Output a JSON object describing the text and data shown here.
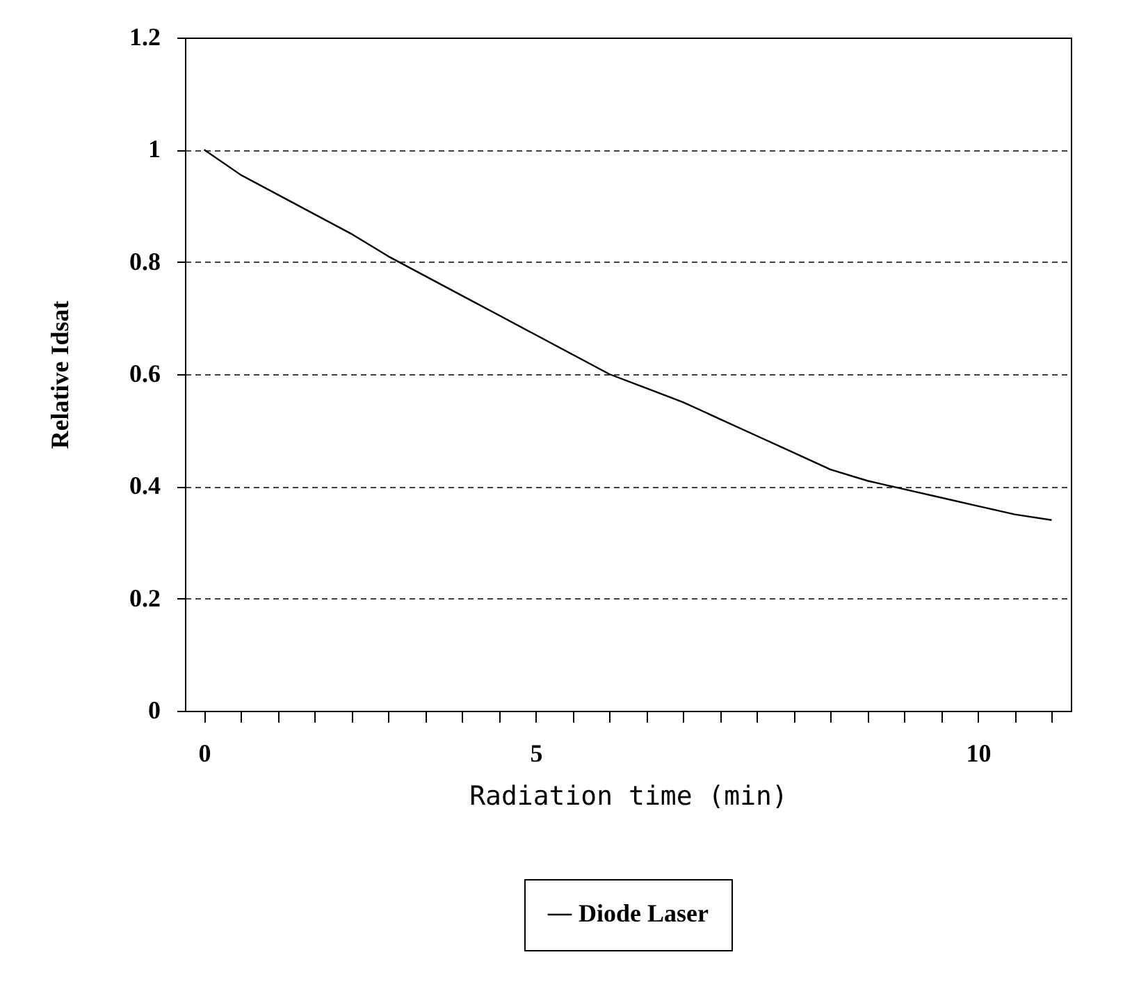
{
  "chart_data": {
    "type": "line",
    "xlabel": "Radiation time (min)",
    "ylabel": "Relative Idsat",
    "categories": [
      "0",
      null,
      null,
      null,
      null,
      null,
      null,
      null,
      null,
      "5",
      null,
      null,
      null,
      null,
      null,
      null,
      null,
      null,
      null,
      null,
      null,
      "10",
      null,
      null
    ],
    "series": [
      {
        "name": "Diode Laser",
        "color": "#000000",
        "values": [
          1.0,
          0.955,
          0.92,
          0.885,
          0.85,
          0.81,
          0.775,
          0.74,
          0.705,
          0.67,
          0.635,
          0.6,
          0.575,
          0.55,
          0.52,
          0.49,
          0.46,
          0.43,
          0.41,
          0.395,
          0.38,
          0.365,
          0.35,
          0.34
        ]
      }
    ],
    "ylim": [
      0,
      1.2
    ],
    "yticks": [
      0,
      0.2,
      0.4,
      0.6,
      0.8,
      1,
      1.2
    ],
    "grid": "y",
    "legend": "bottom",
    "marker": "none",
    "line_style": "solid"
  }
}
